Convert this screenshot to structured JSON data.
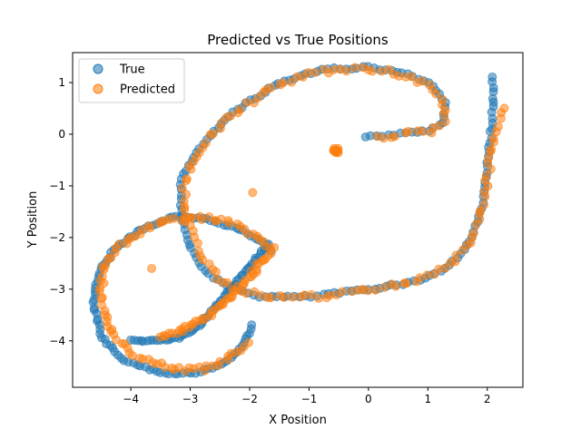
{
  "chart_data": {
    "type": "scatter",
    "title": "Predicted vs True Positions",
    "xlabel": "X Position",
    "ylabel": "Y Position",
    "xlim": [
      -4.98,
      2.6
    ],
    "ylim": [
      -4.9,
      1.58
    ],
    "xticks": [
      -4,
      -3,
      -2,
      -1,
      0,
      1,
      2
    ],
    "yticks": [
      -4,
      -3,
      -2,
      -1,
      0,
      1
    ],
    "xtick_labels": [
      "−4",
      "−3",
      "−2",
      "−1",
      "0",
      "1",
      "2"
    ],
    "ytick_labels": [
      "−4",
      "−3",
      "−2",
      "−1",
      "0",
      "1"
    ],
    "legend_position": "top-left",
    "marker_alpha": 0.55,
    "series": [
      {
        "name": "True",
        "color": "#1f77b4",
        "anchors": [
          [
            -0.05,
            -0.05
          ],
          [
            0.5,
            0.0
          ],
          [
            0.95,
            0.05
          ],
          [
            1.25,
            0.2
          ],
          [
            1.3,
            0.6
          ],
          [
            1.1,
            0.95
          ],
          [
            0.6,
            1.18
          ],
          [
            0.0,
            1.3
          ],
          [
            -0.8,
            1.25
          ],
          [
            -1.5,
            1.0
          ],
          [
            -2.3,
            0.4
          ],
          [
            -2.9,
            -0.35
          ],
          [
            -3.15,
            -0.9
          ],
          [
            -3.15,
            -1.6
          ],
          [
            -3.0,
            -2.2
          ],
          [
            -2.8,
            -2.6
          ],
          [
            -2.45,
            -2.9
          ],
          [
            -1.8,
            -3.15
          ],
          [
            -1.0,
            -3.15
          ],
          [
            0.0,
            -3.0
          ],
          [
            0.8,
            -2.85
          ],
          [
            1.3,
            -2.6
          ],
          [
            1.65,
            -2.2
          ],
          [
            1.9,
            -1.5
          ],
          [
            2.0,
            -0.7
          ],
          [
            2.05,
            -0.1
          ],
          [
            2.1,
            0.5
          ],
          [
            2.1,
            1.1
          ]
        ],
        "segments": [
          {
            "start": 0,
            "count": 180
          },
          {
            "start": 27,
            "count": 0
          }
        ],
        "extra_segments": [
          {
            "anchors": [
              [
                -1.95,
                -3.7
              ],
              [
                -2.1,
                -4.1
              ],
              [
                -2.45,
                -4.45
              ],
              [
                -2.9,
                -4.62
              ],
              [
                -3.3,
                -4.65
              ],
              [
                -3.7,
                -4.55
              ],
              [
                -4.15,
                -4.35
              ],
              [
                -4.5,
                -3.9
              ],
              [
                -4.62,
                -3.3
              ],
              [
                -4.55,
                -2.7
              ],
              [
                -4.3,
                -2.25
              ],
              [
                -3.85,
                -1.85
              ],
              [
                -3.3,
                -1.6
              ],
              [
                -2.7,
                -1.65
              ],
              [
                -2.15,
                -1.85
              ],
              [
                -1.75,
                -2.1
              ],
              [
                -1.65,
                -2.25
              ]
            ],
            "count": 110
          },
          {
            "anchors": [
              [
                -1.7,
                -2.15
              ],
              [
                -2.1,
                -2.7
              ],
              [
                -2.5,
                -3.25
              ],
              [
                -2.85,
                -3.7
              ],
              [
                -3.2,
                -3.95
              ],
              [
                -3.6,
                -4.0
              ],
              [
                -4.0,
                -4.0
              ]
            ],
            "count": 60
          }
        ]
      },
      {
        "name": "Predicted",
        "color": "#ff7f0e",
        "anchors": [
          [
            0.15,
            -0.05
          ],
          [
            0.6,
            0.0
          ],
          [
            1.05,
            0.05
          ],
          [
            1.3,
            0.25
          ],
          [
            1.25,
            0.65
          ],
          [
            0.95,
            1.0
          ],
          [
            0.45,
            1.2
          ],
          [
            -0.1,
            1.28
          ],
          [
            -0.9,
            1.2
          ],
          [
            -1.55,
            0.95
          ],
          [
            -2.35,
            0.35
          ],
          [
            -2.95,
            -0.45
          ],
          [
            -3.1,
            -1.0
          ],
          [
            -3.05,
            -1.7
          ],
          [
            -2.85,
            -2.3
          ],
          [
            -2.6,
            -2.7
          ],
          [
            -2.25,
            -3.0
          ],
          [
            -1.6,
            -3.15
          ],
          [
            -0.8,
            -3.15
          ],
          [
            0.1,
            -3.0
          ],
          [
            0.9,
            -2.8
          ],
          [
            1.4,
            -2.5
          ],
          [
            1.75,
            -2.0
          ],
          [
            1.95,
            -1.3
          ],
          [
            2.05,
            -0.5
          ],
          [
            2.15,
            0.1
          ],
          [
            2.25,
            0.5
          ]
        ],
        "count": 150,
        "extra_segments": [
          {
            "anchors": [
              [
                -2.05,
                -4.05
              ],
              [
                -2.4,
                -4.4
              ],
              [
                -2.8,
                -4.55
              ],
              [
                -3.2,
                -4.55
              ],
              [
                -3.6,
                -4.45
              ],
              [
                -4.05,
                -4.2
              ],
              [
                -4.4,
                -3.7
              ],
              [
                -4.5,
                -3.1
              ],
              [
                -4.45,
                -2.55
              ],
              [
                -4.15,
                -2.15
              ],
              [
                -3.7,
                -1.8
              ],
              [
                -3.1,
                -1.6
              ],
              [
                -2.5,
                -1.65
              ],
              [
                -2.0,
                -1.9
              ],
              [
                -1.7,
                -2.15
              ]
            ],
            "count": 90
          },
          {
            "anchors": [
              [
                -1.6,
                -2.2
              ],
              [
                -1.95,
                -2.7
              ],
              [
                -2.35,
                -3.2
              ],
              [
                -2.75,
                -3.55
              ],
              [
                -3.15,
                -3.8
              ],
              [
                -3.5,
                -3.95
              ]
            ],
            "count": 50
          }
        ],
        "cluster": {
          "center": [
            -0.55,
            -0.32
          ],
          "count": 14
        },
        "outliers": [
          [
            -1.95,
            -1.13
          ],
          [
            -3.65,
            -2.6
          ]
        ]
      }
    ]
  }
}
